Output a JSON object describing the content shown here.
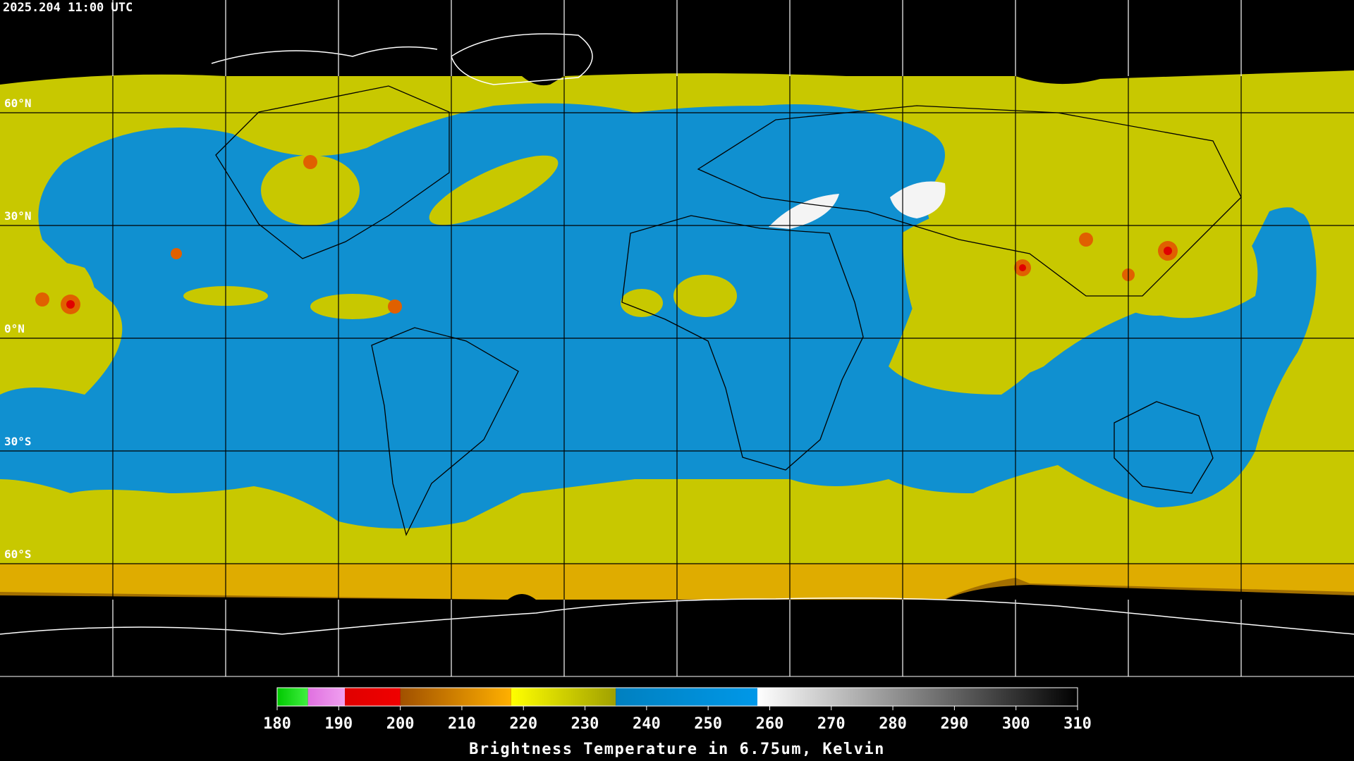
{
  "header": {
    "timestamp": "2025.204 11:00 UTC"
  },
  "map": {
    "lat_labels": [
      "60°N",
      "30°N",
      "0°N",
      "30°S",
      "60°S"
    ]
  },
  "colorbar": {
    "title": "Brightness Temperature in 6.75um, Kelvin",
    "lim": [
      180,
      310
    ],
    "ticks": [
      180,
      190,
      200,
      210,
      220,
      230,
      240,
      250,
      260,
      270,
      280,
      290,
      300,
      310
    ],
    "segments": [
      {
        "from": 180,
        "to": 185,
        "colors": [
          "#00c800",
          "#40f040"
        ]
      },
      {
        "from": 185,
        "to": 191,
        "colors": [
          "#e070e0",
          "#f0a0f0"
        ]
      },
      {
        "from": 191,
        "to": 200,
        "colors": [
          "#e00000",
          "#f00000"
        ]
      },
      {
        "from": 200,
        "to": 218,
        "colors": [
          "#a05000",
          "#ffb000"
        ]
      },
      {
        "from": 218,
        "to": 235,
        "colors": [
          "#ffff00",
          "#a0a000"
        ]
      },
      {
        "from": 235,
        "to": 258,
        "colors": [
          "#0080c0",
          "#0098e8"
        ]
      },
      {
        "from": 258,
        "to": 310,
        "colors": [
          "#ffffff",
          "#000000"
        ]
      }
    ]
  }
}
